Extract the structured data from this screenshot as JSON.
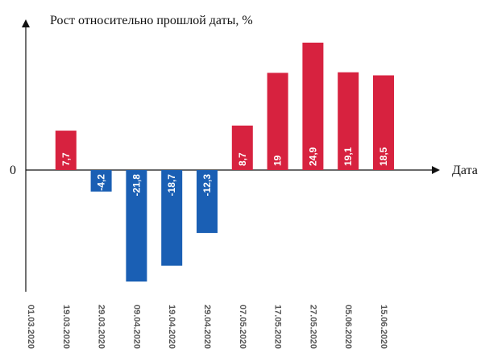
{
  "chart_data": {
    "type": "bar",
    "ylabel": "Рост относительно прошлой даты, %",
    "xlabel": "Дата",
    "zero_label": "0",
    "categories": [
      "01.03.2020",
      "19.03.2020",
      "29.03.2020",
      "09.04.2020",
      "19.04.2020",
      "29.04.2020",
      "07.05.2020",
      "17.05.2020",
      "27.05.2020",
      "05.06.2020",
      "15.06.2020"
    ],
    "values": [
      null,
      7.7,
      -4.2,
      -21.8,
      -18.7,
      -12.3,
      8.7,
      19,
      24.9,
      19.1,
      18.5
    ],
    "value_labels": [
      "",
      "7,7",
      "-4,2",
      "-21,8",
      "-18,7",
      "-12,3",
      "8,7",
      "19",
      "24,9",
      "19,1",
      "18,5"
    ],
    "colors": {
      "positive": "#d7223f",
      "negative": "#1a5fb4"
    },
    "ylim": [
      -23.2,
      31
    ]
  }
}
